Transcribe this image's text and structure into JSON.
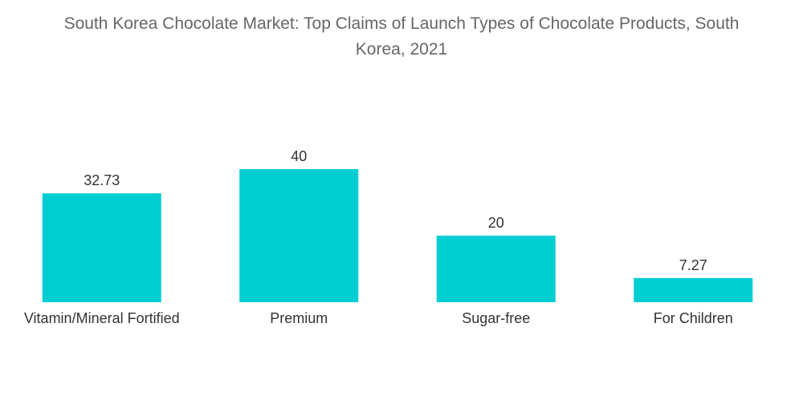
{
  "chart_data": {
    "type": "bar",
    "title_line1": "South Korea Chocolate Market: Top Claims of Launch Types of Chocolate Products, South",
    "title_line2": "Korea, 2021",
    "categories": [
      "Vitamin/Mineral Fortified",
      "Premium",
      "Sugar-free",
      "For Children"
    ],
    "values": [
      32.73,
      40,
      20,
      7.27
    ],
    "value_labels": [
      "32.73",
      "40",
      "20",
      "7.27"
    ],
    "ylim": [
      0,
      40
    ],
    "grid": false,
    "bar_color": "#00CED1"
  }
}
